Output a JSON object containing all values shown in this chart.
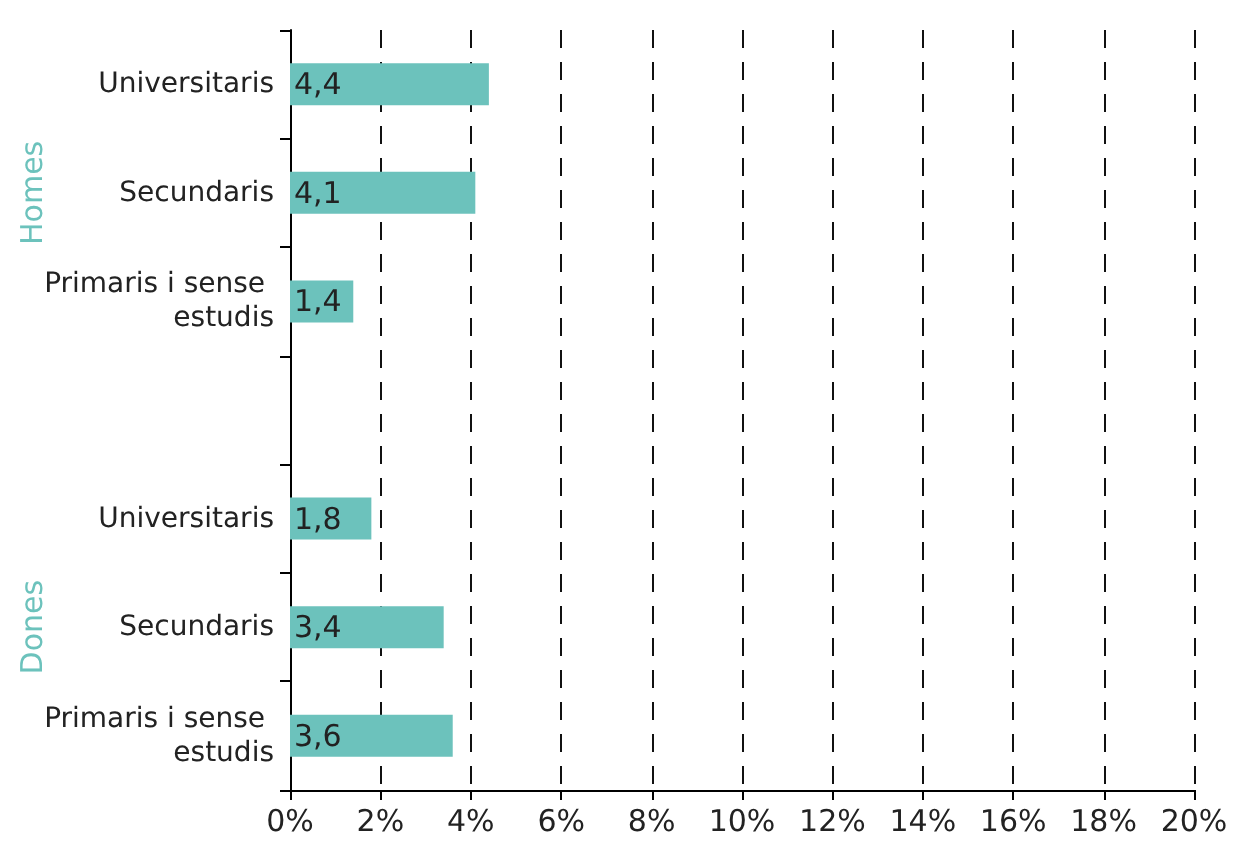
{
  "chart_data": {
    "type": "bar",
    "orientation": "horizontal",
    "categories": [
      "Universitaris",
      "Secundaris",
      "Primaris i sense estudis",
      null,
      "Universitaris",
      "Secundaris",
      "Primaris i sense estudis"
    ],
    "values": [
      4.4,
      4.1,
      1.4,
      null,
      1.8,
      3.4,
      3.6
    ],
    "value_labels": [
      "4,4",
      "4,1",
      "1,4",
      null,
      "1,8",
      "3,4",
      "3,6"
    ],
    "color": "#6cc2bc",
    "xlim": [
      0,
      20
    ],
    "xticks": [
      {
        "value": 0,
        "label": "0%"
      },
      {
        "value": 2,
        "label": "2%"
      },
      {
        "value": 4,
        "label": "4%"
      },
      {
        "value": 6,
        "label": "6%"
      },
      {
        "value": 8,
        "label": "8%"
      },
      {
        "value": 10,
        "label": "10%"
      },
      {
        "value": 12,
        "label": "12%"
      },
      {
        "value": 14,
        "label": "14%"
      },
      {
        "value": 16,
        "label": "16%"
      },
      {
        "value": 18,
        "label": "18%"
      },
      {
        "value": 20,
        "label": "20%"
      }
    ],
    "grid": "x",
    "annotations": [
      "Homes",
      "Dones"
    ]
  }
}
